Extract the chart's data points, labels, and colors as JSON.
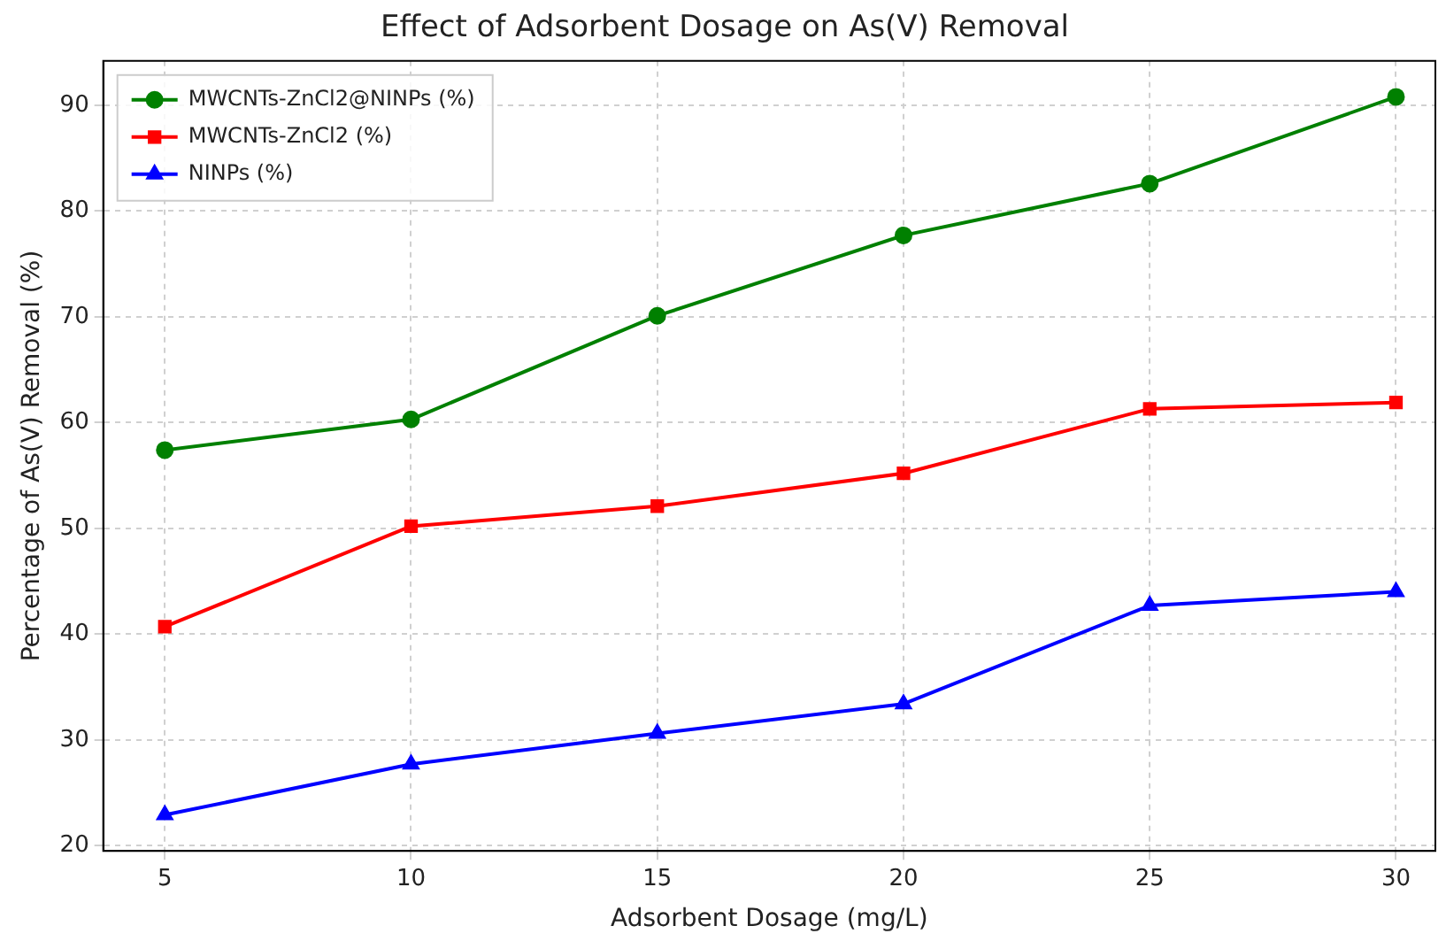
{
  "chart_data": {
    "type": "line",
    "title": "Effect of Adsorbent Dosage on As(V) Removal",
    "xlabel": "Adsorbent Dosage (mg/L)",
    "ylabel": "Percentage of As(V) Removal (%)",
    "x": [
      5,
      10,
      15,
      20,
      25,
      30
    ],
    "series": [
      {
        "name": "MWCNTs-ZnCl2@NINPs (%)",
        "color": "#008000",
        "marker": "circle",
        "values": [
          57.4,
          60.3,
          70.1,
          77.7,
          82.6,
          90.8
        ]
      },
      {
        "name": "MWCNTs-ZnCl2 (%)",
        "color": "#ff0000",
        "marker": "square",
        "values": [
          40.7,
          50.2,
          52.1,
          55.2,
          61.3,
          61.9
        ]
      },
      {
        "name": "NINPs (%)",
        "color": "#0000ff",
        "marker": "triangle",
        "values": [
          22.9,
          27.7,
          30.6,
          33.4,
          42.7,
          44.0
        ]
      }
    ],
    "xlim": [
      3.75,
      30.8
    ],
    "ylim": [
      19.5,
      94.2
    ],
    "xticks": [
      5,
      10,
      15,
      20,
      25,
      30
    ],
    "yticks": [
      20,
      30,
      40,
      50,
      60,
      70,
      80,
      90
    ],
    "grid": true,
    "legend": "top left",
    "line_style": "solid"
  }
}
